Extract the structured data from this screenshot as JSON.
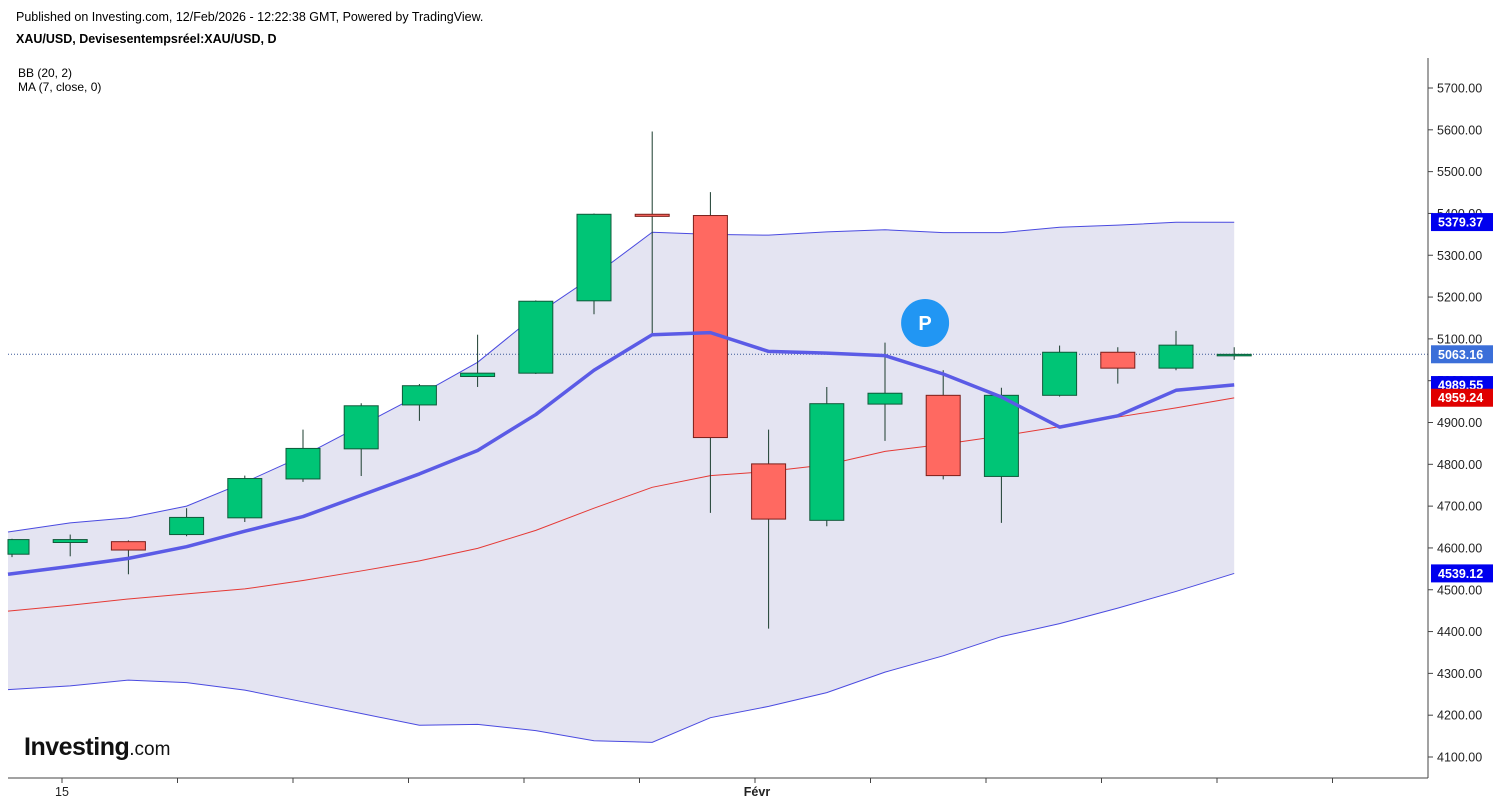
{
  "header": {
    "published": "Published on Investing.com, 12/Feb/2026 - 12:22:38 GMT, Powered by TradingView.",
    "symbol": "XAU/USD, Devisesentempsréel:XAU/USD, D"
  },
  "indicators": {
    "bb_label": "BB (20, 2)",
    "ma_label": "MA (7, close, 0)"
  },
  "logo": {
    "name": "Investing",
    "suffix": ".com"
  },
  "marker": {
    "label": "P",
    "color": "#2196f3"
  },
  "colors": {
    "up": "#00c576",
    "down": "#ff6961",
    "wick": "#1b3d2f",
    "ma": "#5b5be6",
    "bb_band": "#4a4ae0",
    "bb_basis": "#e53935",
    "bb_fill": "#e4e4f2",
    "last_price_line": "#3b5998"
  },
  "chart_data": {
    "type": "candlestick",
    "title": "XAU/USD, Devisesentempsréel:XAU/USD, D",
    "x_labels": [
      {
        "index": 1,
        "label": "15"
      },
      {
        "index": 13,
        "label": "Févr"
      }
    ],
    "y_ticks": [
      4100,
      4200,
      4300,
      4400,
      4500,
      4600,
      4700,
      4800,
      4900,
      5000,
      5100,
      5200,
      5300,
      5400,
      5500,
      5600,
      5700
    ],
    "y_tick_labels": [
      "4100.00",
      "4200.00",
      "4300.00",
      "4400.00",
      "4500.00",
      "4600.00",
      "4700.00",
      "4800.00",
      "4900.00",
      "5000.00",
      "5100.00",
      "5200.00",
      "5300.00",
      "5400.00",
      "5500.00",
      "5600.00",
      "5700.00"
    ],
    "ylim": [
      4070,
      5770
    ],
    "candles": [
      {
        "o": 4585,
        "h": 4622,
        "l": 4578,
        "c": 4620
      },
      {
        "o": 4613,
        "h": 4632,
        "l": 4580,
        "c": 4620
      },
      {
        "o": 4615,
        "h": 4618,
        "l": 4537,
        "c": 4595
      },
      {
        "o": 4632,
        "h": 4695,
        "l": 4628,
        "c": 4673
      },
      {
        "o": 4672,
        "h": 4773,
        "l": 4662,
        "c": 4766
      },
      {
        "o": 4765,
        "h": 4883,
        "l": 4758,
        "c": 4838
      },
      {
        "o": 4837,
        "h": 4946,
        "l": 4772,
        "c": 4940
      },
      {
        "o": 4942,
        "h": 4992,
        "l": 4904,
        "c": 4988
      },
      {
        "o": 5010,
        "h": 5110,
        "l": 4985,
        "c": 5018
      },
      {
        "o": 5018,
        "h": 5192,
        "l": 5016,
        "c": 5190
      },
      {
        "o": 5191,
        "h": 5400,
        "l": 5159,
        "c": 5398
      },
      {
        "o": 5398,
        "h": 5596,
        "l": 5108,
        "c": 5393
      },
      {
        "o": 5395,
        "h": 5451,
        "l": 4684,
        "c": 4864
      },
      {
        "o": 4801,
        "h": 4883,
        "l": 4407,
        "c": 4669
      },
      {
        "o": 4666,
        "h": 4985,
        "l": 4652,
        "c": 4945
      },
      {
        "o": 4944,
        "h": 5091,
        "l": 4856,
        "c": 4970
      },
      {
        "o": 4965,
        "h": 5025,
        "l": 4764,
        "c": 4773
      },
      {
        "o": 4771,
        "h": 4983,
        "l": 4660,
        "c": 4965
      },
      {
        "o": 4965,
        "h": 5084,
        "l": 4962,
        "c": 5068
      },
      {
        "o": 5068,
        "h": 5080,
        "l": 4993,
        "c": 5030
      },
      {
        "o": 5030,
        "h": 5119,
        "l": 5025,
        "c": 5085
      },
      {
        "o": 5063,
        "h": 5080,
        "l": 5050,
        "c": 5063
      }
    ],
    "series": [
      {
        "name": "BB upper",
        "values": [
          4638,
          4660,
          4672,
          4700,
          4757,
          4820,
          4893,
          4966,
          5044,
          5157,
          5251,
          5355,
          5350,
          5348,
          5356,
          5361,
          5354,
          5354,
          5367,
          5372,
          5379,
          5379
        ]
      },
      {
        "name": "BB basis",
        "values": [
          4449,
          4463,
          4478,
          4490,
          4502,
          4522,
          4545,
          4569,
          4599,
          4642,
          4695,
          4745,
          4773,
          4783,
          4799,
          4831,
          4848,
          4868,
          4890,
          4913,
          4935,
          4959
        ]
      },
      {
        "name": "BB lower",
        "values": [
          4261,
          4270,
          4284,
          4278,
          4260,
          4232,
          4204,
          4176,
          4178,
          4163,
          4139,
          4135,
          4194,
          4221,
          4254,
          4303,
          4342,
          4388,
          4419,
          4456,
          4496,
          4539
        ]
      },
      {
        "name": "MA",
        "values": [
          4537,
          4556,
          4575,
          4603,
          4640,
          4675,
          4726,
          4777,
          4833,
          4919,
          5025,
          5110,
          5115,
          5070,
          5066,
          5060,
          5016,
          4961,
          4889,
          4916,
          4977,
          4990
        ]
      }
    ],
    "price_tags": [
      {
        "label": "5379.37",
        "value": 5379.37,
        "color": "#0000ee"
      },
      {
        "label": "5063.16",
        "value": 5063.16,
        "color": "#3b6fd9"
      },
      {
        "label": "4989.55",
        "value": 4989.55,
        "color": "#0000ee"
      },
      {
        "label": "4959.24",
        "value": 4959.24,
        "color": "#e00000"
      },
      {
        "label": "4539.12",
        "value": 4539.12,
        "color": "#0000ee"
      }
    ],
    "last_price": 5063.16,
    "marker_index": 15.5,
    "marker_value": 5150,
    "grid": false
  }
}
